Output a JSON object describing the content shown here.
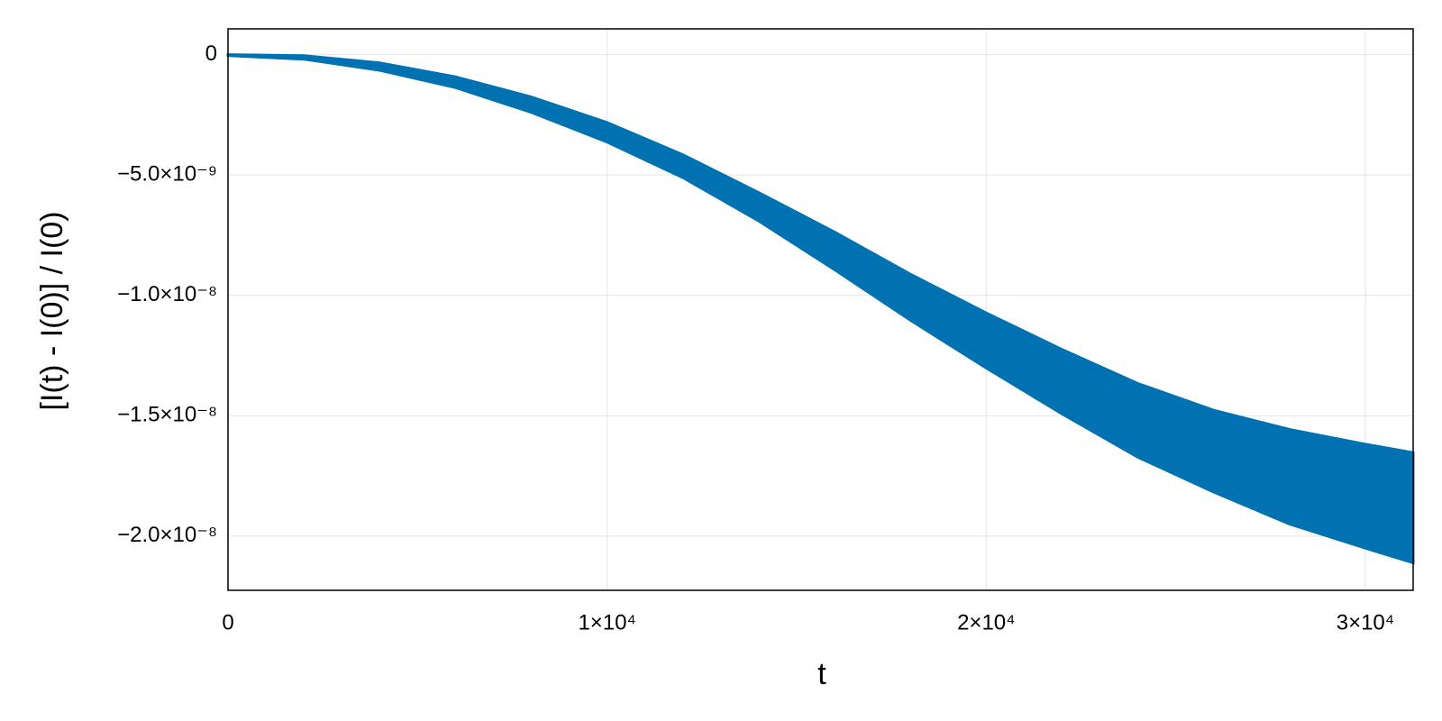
{
  "chart_data": {
    "type": "band",
    "color": "#0072b2",
    "xlabel": "t",
    "ylabel": "[I(t) - I(0)] / I(0)",
    "x": [
      0,
      2000,
      4000,
      6000,
      8000,
      10000,
      12000,
      14000,
      16000,
      18000,
      20000,
      22000,
      24000,
      26000,
      28000,
      30000,
      31262
    ],
    "upper": [
      0,
      -4e-11,
      -3.4e-10,
      -9.2e-10,
      -1.76e-09,
      -2.82e-09,
      -4.16e-09,
      -5.73e-09,
      -7.37e-09,
      -9.12e-09,
      -1.073e-08,
      -1.225e-08,
      -1.366e-08,
      -1.477e-08,
      -1.557e-08,
      -1.618e-08,
      -1.653e-08
    ],
    "lower": [
      -4e-11,
      -1.9e-10,
      -6.5e-10,
      -1.37e-09,
      -2.4e-09,
      -3.63e-09,
      -5.11e-09,
      -6.91e-09,
      -8.93e-09,
      -1.103e-08,
      -1.302e-08,
      -1.492e-08,
      -1.672e-08,
      -1.817e-08,
      -1.95e-08,
      -2.05e-08,
      -2.111e-08
    ],
    "xlim": [
      0,
      31262
    ],
    "ylim": [
      -2.225e-08,
      1.07e-09
    ],
    "xticks": [
      0,
      {
        "value": 10000,
        "label": "1×10⁴"
      },
      {
        "value": 20000,
        "label": "2×10⁴"
      },
      {
        "value": 30000,
        "label": "3×10⁴"
      }
    ],
    "yticks": [
      0,
      {
        "value": -5e-09,
        "label": "−5.0×10⁻⁹"
      },
      {
        "value": -1e-08,
        "label": "−1.0×10⁻⁸"
      },
      {
        "value": -1.5e-08,
        "label": "−1.5×10⁻⁸"
      },
      {
        "value": -2e-08,
        "label": "−2.0×10⁻⁸"
      }
    ],
    "grid": true
  }
}
